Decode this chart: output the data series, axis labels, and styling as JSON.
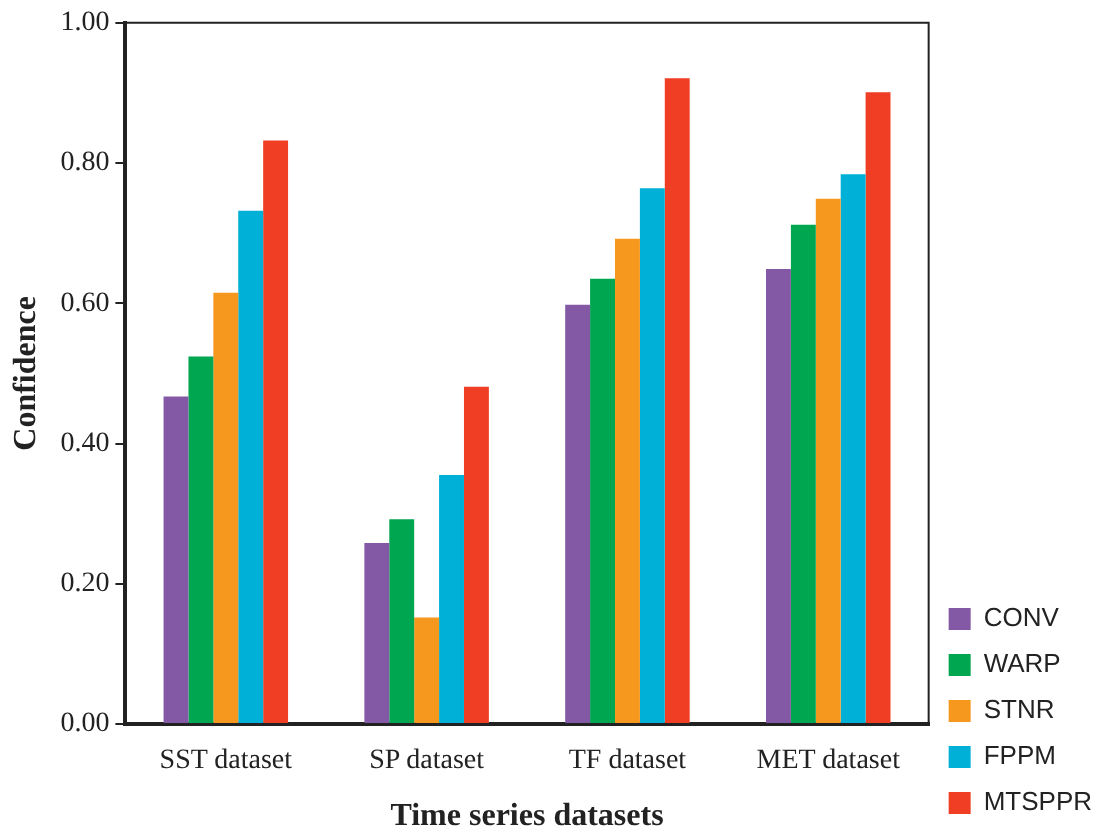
{
  "chart_data": {
    "type": "bar",
    "xlabel": "Time series datasets",
    "ylabel": "Confidence",
    "categories": [
      "SST dataset",
      "SP dataset",
      "TF dataset",
      "MET dataset"
    ],
    "series": [
      {
        "name": "CONV",
        "color": "#8358a4",
        "values": [
          0.467,
          0.258,
          0.598,
          0.649
        ]
      },
      {
        "name": "WARP",
        "color": "#00a650",
        "values": [
          0.524,
          0.292,
          0.635,
          0.712
        ]
      },
      {
        "name": "STNR",
        "color": "#f6981e",
        "values": [
          0.615,
          0.152,
          0.692,
          0.749
        ]
      },
      {
        "name": "FPPM",
        "color": "#00b0d7",
        "values": [
          0.732,
          0.355,
          0.764,
          0.784
        ]
      },
      {
        "name": "MTSPPR",
        "color": "#ef3e23",
        "values": [
          0.832,
          0.481,
          0.921,
          0.901
        ]
      }
    ],
    "ylim": [
      0,
      1
    ],
    "yticks": [
      {
        "value": 0,
        "label": "0.00"
      },
      {
        "value": 0.2,
        "label": "0.20"
      },
      {
        "value": 0.4,
        "label": "0.40"
      },
      {
        "value": 0.6,
        "label": "0.60"
      },
      {
        "value": 0.8,
        "label": "0.80"
      },
      {
        "value": 1,
        "label": "1.00"
      }
    ],
    "grid": false,
    "legend": "bottom right"
  }
}
